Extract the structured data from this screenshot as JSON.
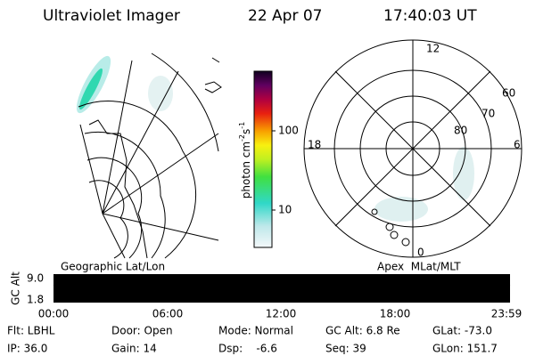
{
  "header": {
    "title": "Ultraviolet Imager",
    "date": "22 Apr 07",
    "time": "17:40:03 UT"
  },
  "colorbar": {
    "label": {
      "text": "photon cm",
      "exp1": "-2",
      "unit2": "s",
      "exp2": "-1"
    },
    "ticks": [
      "100",
      "10"
    ]
  },
  "polar": {
    "labels": [
      "12",
      "18",
      "6",
      "0",
      "60",
      "70",
      "80"
    ]
  },
  "panel_labels": [
    "Geographic Lat/Lon",
    "Apex  MLat/MLT"
  ],
  "timeline": {
    "ylabel": "GC Alt",
    "yticks": [
      "9.0",
      "1.8"
    ],
    "xticks": [
      "00:00",
      "06:00",
      "12:00",
      "18:00",
      "23:59"
    ]
  },
  "info": [
    [
      "Flt: LBHL",
      "Door: Open",
      "Mode: Normal",
      "GC Alt: 6.8 Re",
      "GLat: -73.0"
    ],
    [
      "IP: 36.0",
      "Gain: 14",
      "Dsp:    -6.6",
      "Seq: 39",
      "GLon: 151.7"
    ]
  ]
}
